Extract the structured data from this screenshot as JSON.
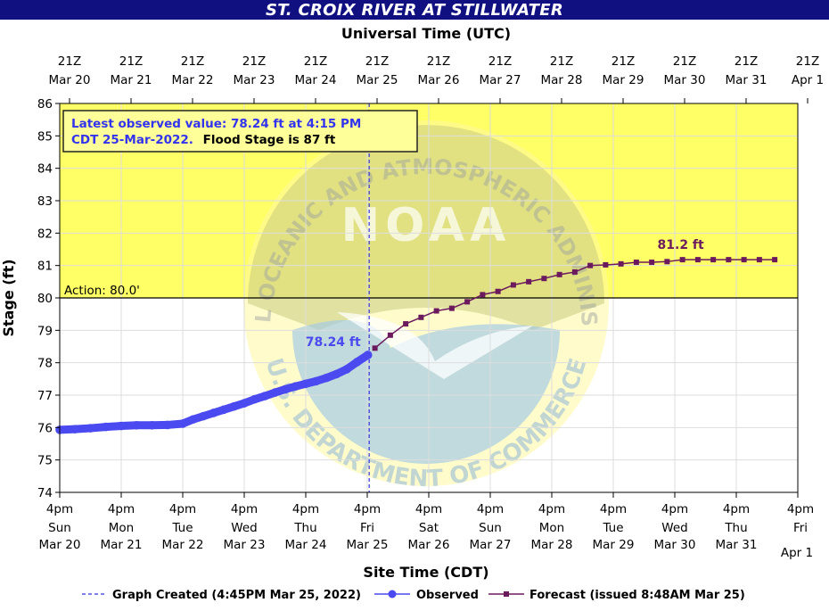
{
  "title": "ST. CROIX RIVER AT STILLWATER",
  "colors": {
    "title_bg": "#101080",
    "flood_zone": "#ffff66",
    "observed": "#4a4af0",
    "forecast": "#6b1a5e",
    "created_line": "#3333dd",
    "watermark": "#9ec7e6"
  },
  "annotation": {
    "line1": "Latest observed value: 78.24 ft at 4:15 PM",
    "line2a": "CDT 25-Mar-2022.",
    "line2b": "Flood Stage is 87 ft"
  },
  "chart_data": {
    "type": "line",
    "title": "ST. CROIX RIVER AT STILLWATER",
    "top_axis_title": "Universal Time (UTC)",
    "xlabel": "Site Time (CDT)",
    "ylabel": "Stage (ft)",
    "ylim": [
      74,
      86
    ],
    "yticks": [
      74,
      75,
      76,
      77,
      78,
      79,
      80,
      81,
      82,
      83,
      84,
      85,
      86
    ],
    "xlim": [
      "2022-03-20T16:00",
      "2022-04-01T16:00"
    ],
    "grid": true,
    "top_ticks": [
      {
        "line1": "21Z",
        "line2": "Mar 20"
      },
      {
        "line1": "21Z",
        "line2": "Mar 21"
      },
      {
        "line1": "21Z",
        "line2": "Mar 22"
      },
      {
        "line1": "21Z",
        "line2": "Mar 23"
      },
      {
        "line1": "21Z",
        "line2": "Mar 24"
      },
      {
        "line1": "21Z",
        "line2": "Mar 25"
      },
      {
        "line1": "21Z",
        "line2": "Mar 26"
      },
      {
        "line1": "21Z",
        "line2": "Mar 27"
      },
      {
        "line1": "21Z",
        "line2": "Mar 28"
      },
      {
        "line1": "21Z",
        "line2": "Mar 29"
      },
      {
        "line1": "21Z",
        "line2": "Mar 30"
      },
      {
        "line1": "21Z",
        "line2": "Mar 31"
      },
      {
        "line1": "21Z",
        "line2": "Apr  1"
      }
    ],
    "bottom_ticks": [
      {
        "time": "4pm",
        "day": "Sun",
        "date": "Mar 20"
      },
      {
        "time": "4pm",
        "day": "Mon",
        "date": "Mar 21"
      },
      {
        "time": "4pm",
        "day": "Tue",
        "date": "Mar 22"
      },
      {
        "time": "4pm",
        "day": "Wed",
        "date": "Mar 23"
      },
      {
        "time": "4pm",
        "day": "Thu",
        "date": "Mar 24"
      },
      {
        "time": "4pm",
        "day": "Fri",
        "date": "Mar 25"
      },
      {
        "time": "4pm",
        "day": "Sat",
        "date": "Mar 26"
      },
      {
        "time": "4pm",
        "day": "Sun",
        "date": "Mar 27"
      },
      {
        "time": "4pm",
        "day": "Mon",
        "date": "Mar 28"
      },
      {
        "time": "4pm",
        "day": "Tue",
        "date": "Mar 29"
      },
      {
        "time": "4pm",
        "day": "Wed",
        "date": "Mar 30"
      },
      {
        "time": "4pm",
        "day": "Thu",
        "date": "Mar 31"
      },
      {
        "time": "4pm",
        "day": "Fri",
        "date": "Apr 1"
      }
    ],
    "flood_stage": 87,
    "action_stage": {
      "value": 80.0,
      "label": "Action: 80.0'"
    },
    "graph_created": "2022-03-25T16:45",
    "series": [
      {
        "name": "Observed",
        "color": "#4a4af0",
        "last_label": "78.24 ft",
        "points": [
          [
            "2022-03-20T16:00",
            75.93
          ],
          [
            "2022-03-20T22:00",
            75.95
          ],
          [
            "2022-03-21T04:00",
            75.98
          ],
          [
            "2022-03-21T10:00",
            76.02
          ],
          [
            "2022-03-21T16:00",
            76.05
          ],
          [
            "2022-03-21T22:00",
            76.07
          ],
          [
            "2022-03-22T04:00",
            76.07
          ],
          [
            "2022-03-22T10:00",
            76.08
          ],
          [
            "2022-03-22T16:00",
            76.12
          ],
          [
            "2022-03-22T20:00",
            76.25
          ],
          [
            "2022-03-23T00:00",
            76.35
          ],
          [
            "2022-03-23T04:00",
            76.45
          ],
          [
            "2022-03-23T08:00",
            76.55
          ],
          [
            "2022-03-23T12:00",
            76.65
          ],
          [
            "2022-03-23T16:00",
            76.75
          ],
          [
            "2022-03-23T20:00",
            76.87
          ],
          [
            "2022-03-24T00:00",
            76.97
          ],
          [
            "2022-03-24T04:00",
            77.08
          ],
          [
            "2022-03-24T08:00",
            77.18
          ],
          [
            "2022-03-24T12:00",
            77.27
          ],
          [
            "2022-03-24T16:00",
            77.35
          ],
          [
            "2022-03-24T20:00",
            77.43
          ],
          [
            "2022-03-25T00:00",
            77.53
          ],
          [
            "2022-03-25T04:00",
            77.65
          ],
          [
            "2022-03-25T08:00",
            77.8
          ],
          [
            "2022-03-25T12:00",
            78.02
          ],
          [
            "2022-03-25T16:15",
            78.24
          ]
        ]
      },
      {
        "name": "Forecast (issued 8:48AM Mar 25)",
        "color": "#6b1a5e",
        "peak_label": "81.2 ft",
        "points": [
          [
            "2022-03-25T19:00",
            78.45
          ],
          [
            "2022-03-26T01:00",
            78.85
          ],
          [
            "2022-03-26T07:00",
            79.2
          ],
          [
            "2022-03-26T13:00",
            79.4
          ],
          [
            "2022-03-26T19:00",
            79.6
          ],
          [
            "2022-03-27T01:00",
            79.68
          ],
          [
            "2022-03-27T07:00",
            79.88
          ],
          [
            "2022-03-27T13:00",
            80.1
          ],
          [
            "2022-03-27T19:00",
            80.2
          ],
          [
            "2022-03-28T01:00",
            80.4
          ],
          [
            "2022-03-28T07:00",
            80.5
          ],
          [
            "2022-03-28T13:00",
            80.6
          ],
          [
            "2022-03-28T19:00",
            80.72
          ],
          [
            "2022-03-29T01:00",
            80.8
          ],
          [
            "2022-03-29T07:00",
            81.0
          ],
          [
            "2022-03-29T13:00",
            81.02
          ],
          [
            "2022-03-29T19:00",
            81.05
          ],
          [
            "2022-03-30T01:00",
            81.1
          ],
          [
            "2022-03-30T07:00",
            81.1
          ],
          [
            "2022-03-30T13:00",
            81.12
          ],
          [
            "2022-03-30T19:00",
            81.18
          ],
          [
            "2022-03-31T01:00",
            81.18
          ],
          [
            "2022-03-31T07:00",
            81.18
          ],
          [
            "2022-03-31T13:00",
            81.18
          ],
          [
            "2022-03-31T19:00",
            81.18
          ],
          [
            "2022-04-01T01:00",
            81.18
          ],
          [
            "2022-04-01T07:00",
            81.18
          ]
        ]
      }
    ],
    "legend": {
      "position": "bottom",
      "items": [
        "Graph Created (4:45PM Mar 25, 2022)",
        "Observed",
        "Forecast (issued 8:48AM Mar 25)"
      ]
    }
  },
  "watermark": {
    "top_text": "NATIONAL OCEANIC AND ATMOSPHERIC ADMINISTRATION",
    "center_text": "NOAA",
    "bottom_text": "U.S. DEPARTMENT OF COMMERCE"
  }
}
